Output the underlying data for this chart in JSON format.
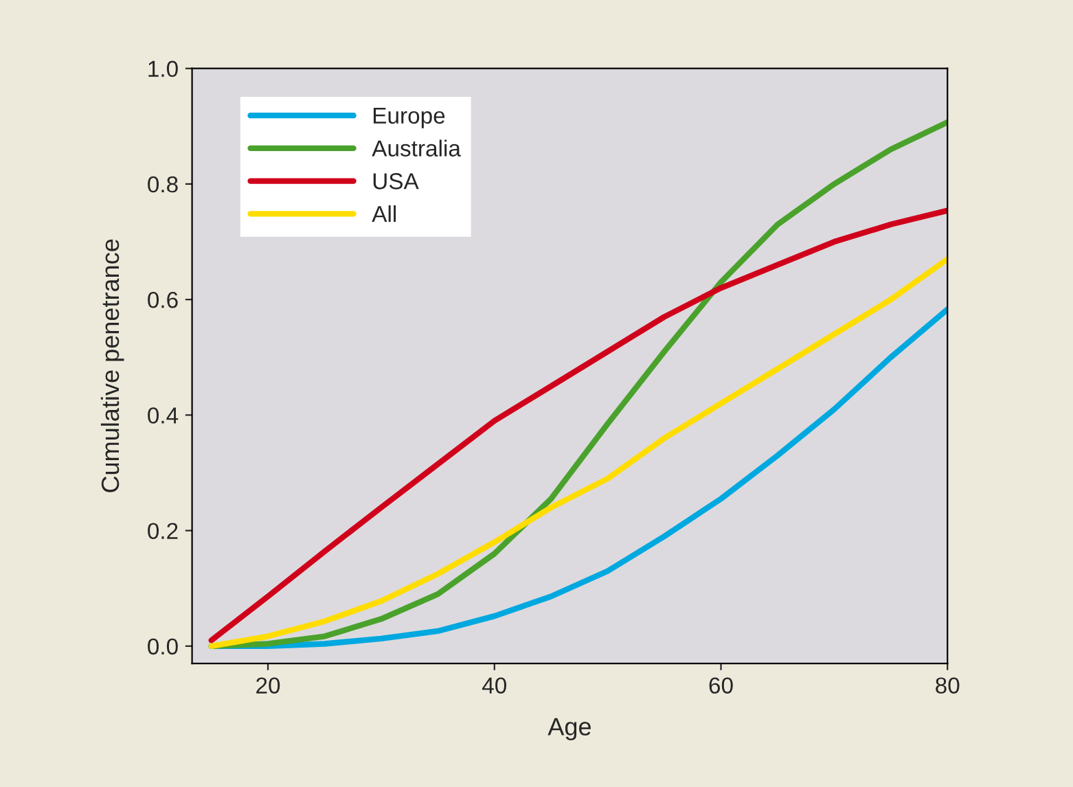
{
  "chart_data": {
    "type": "line",
    "xlabel": "Age",
    "ylabel": "Cumulative penetrance",
    "x": [
      15,
      20,
      25,
      30,
      35,
      40,
      45,
      50,
      55,
      60,
      65,
      70,
      75,
      80
    ],
    "series": [
      {
        "name": "Europe",
        "color": "#00a8e0",
        "values": [
          0.0,
          0.0,
          0.004,
          0.013,
          0.026,
          0.052,
          0.086,
          0.13,
          0.19,
          0.255,
          0.33,
          0.41,
          0.5,
          0.583
        ]
      },
      {
        "name": "Australia",
        "color": "#4aa22c",
        "values": [
          0.0,
          0.004,
          0.017,
          0.047,
          0.09,
          0.16,
          0.255,
          0.385,
          0.51,
          0.63,
          0.73,
          0.8,
          0.86,
          0.907
        ]
      },
      {
        "name": "USA",
        "color": "#d0021b",
        "values": [
          0.01,
          0.086,
          0.164,
          0.24,
          0.315,
          0.39,
          0.45,
          0.51,
          0.57,
          0.62,
          0.66,
          0.7,
          0.73,
          0.754
        ]
      },
      {
        "name": "All",
        "color": "#ffdd00",
        "values": [
          0.0,
          0.017,
          0.043,
          0.078,
          0.125,
          0.18,
          0.24,
          0.29,
          0.36,
          0.42,
          0.48,
          0.54,
          0.6,
          0.67
        ]
      }
    ],
    "xlim": [
      13.3,
      80
    ],
    "xticks": [
      20,
      40,
      60,
      80
    ],
    "ylim": [
      -0.03,
      1.0
    ],
    "yticks": [
      {
        "value": 0,
        "label": "0.0"
      },
      {
        "value": 0.2,
        "label": "0.2"
      },
      {
        "value": 0.4,
        "label": "0.4"
      },
      {
        "value": 0.6,
        "label": "0.6"
      },
      {
        "value": 0.8,
        "label": "0.8"
      },
      {
        "value": 1.0,
        "label": "1.0"
      }
    ],
    "legend": "top left",
    "grid": false
  }
}
